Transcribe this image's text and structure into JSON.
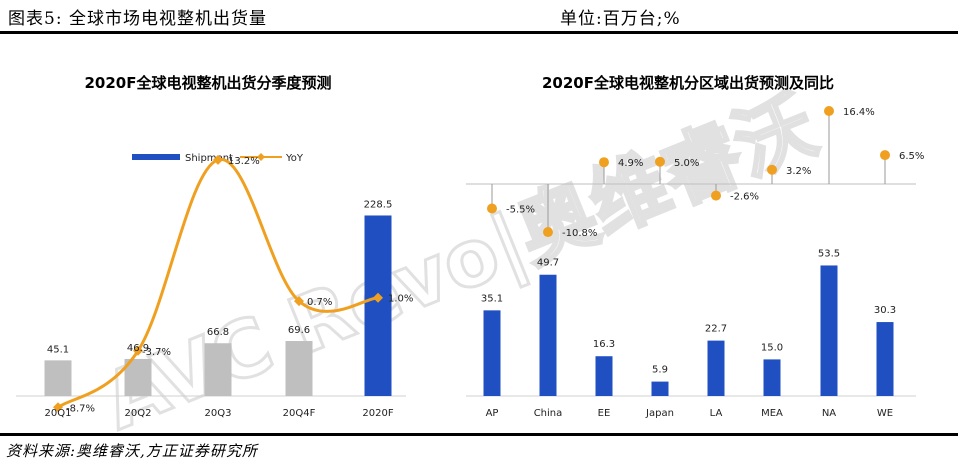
{
  "header": {
    "title": "图表5:  全球市场电视整机出货量",
    "unit": "单位:百万台;%"
  },
  "source": "资料来源:奥维睿沃,方正证券研究所",
  "watermark": "AVC Revo|奥维睿沃",
  "colors": {
    "shipment_gray": "#bfbfbf",
    "shipment_blue": "#1f4fc0",
    "yoy_orange": "#f0a020"
  },
  "chart_data": [
    {
      "type": "bar",
      "title": "2020F全球电视整机出货分季度预测",
      "categories": [
        "20Q1",
        "20Q2",
        "20Q3",
        "20Q4F",
        "2020F"
      ],
      "series": [
        {
          "name": "Shipment",
          "values": [
            45.1,
            46.9,
            66.8,
            69.6,
            228.5
          ],
          "value_labels": [
            "45.1",
            "46.9",
            "66.8",
            "69.6",
            "228.5"
          ]
        },
        {
          "name": "YoY",
          "type": "line",
          "values": [
            -8.7,
            -3.7,
            13.2,
            0.7,
            1.0
          ],
          "value_labels": [
            "-8.7%",
            "-3.7%",
            "13.2%",
            "0.7%",
            "1.0%"
          ]
        }
      ],
      "legend_placement": "top",
      "grid": false
    },
    {
      "type": "bar",
      "title": "2020F全球电视整机分区域出货预测及同比",
      "categories": [
        "AP",
        "China",
        "EE",
        "Japan",
        "LA",
        "MEA",
        "NA",
        "WE"
      ],
      "series": [
        {
          "name": "Shipment",
          "values": [
            35.1,
            49.7,
            16.3,
            5.9,
            22.7,
            15.0,
            53.5,
            30.3
          ],
          "value_labels": [
            "35.1",
            "49.7",
            "16.3",
            "5.9",
            "22.7",
            "15.0",
            "53.5",
            "30.3"
          ]
        },
        {
          "name": "YoY",
          "type": "lollipop",
          "values": [
            -5.5,
            -10.8,
            4.9,
            5.0,
            -2.6,
            3.2,
            16.4,
            6.5
          ],
          "value_labels": [
            "-5.5%",
            "-10.8%",
            "4.9%",
            "5.0%",
            "-2.6%",
            "3.2%",
            "16.4%",
            "6.5%"
          ]
        }
      ],
      "grid": false
    }
  ]
}
